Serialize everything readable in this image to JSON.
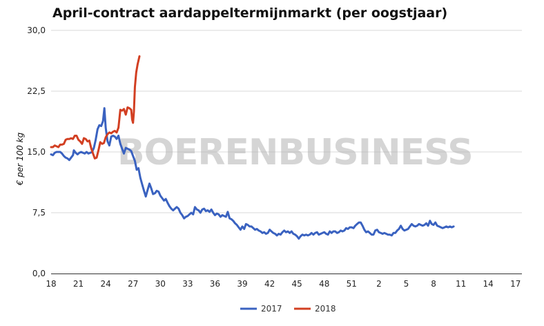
{
  "chart_data": {
    "type": "line",
    "title": "April-contract aardappeltermijnmarkt (per oogstjaar)",
    "ylabel": "€ per 100 kg",
    "xlabel": "",
    "ylim": [
      0,
      30
    ],
    "y_ticks": [
      "0,0",
      "7,5",
      "15,0",
      "22,5",
      "30,0"
    ],
    "x_ticks": [
      "18",
      "21",
      "24",
      "27",
      "30",
      "33",
      "36",
      "39",
      "42",
      "45",
      "48",
      "51",
      "2",
      "5",
      "8",
      "11",
      "14",
      "17"
    ],
    "watermark": "BOERENBUSINESS",
    "grid": "horizontal",
    "legend_position": "bottom",
    "x_unit": "week (18 = week 18, sequential index 0..55 across year boundary)",
    "series": [
      {
        "name": "2017",
        "color": "#3a62c0",
        "points": [
          [
            0,
            14.7
          ],
          [
            0.2,
            14.6
          ],
          [
            0.4,
            14.9
          ],
          [
            0.6,
            15.0
          ],
          [
            0.8,
            15.0
          ],
          [
            1.0,
            15.0
          ],
          [
            1.2,
            14.8
          ],
          [
            1.4,
            14.5
          ],
          [
            1.6,
            14.3
          ],
          [
            1.8,
            14.2
          ],
          [
            2.0,
            14.0
          ],
          [
            2.2,
            14.3
          ],
          [
            2.4,
            14.6
          ],
          [
            2.5,
            15.2
          ],
          [
            2.7,
            14.9
          ],
          [
            2.9,
            14.7
          ],
          [
            3.1,
            14.9
          ],
          [
            3.3,
            15.0
          ],
          [
            3.5,
            14.9
          ],
          [
            3.7,
            14.8
          ],
          [
            3.9,
            15.0
          ],
          [
            4.1,
            14.8
          ],
          [
            4.3,
            14.9
          ],
          [
            4.5,
            15.0
          ],
          [
            4.7,
            15.5
          ],
          [
            4.9,
            16.5
          ],
          [
            5.1,
            17.8
          ],
          [
            5.3,
            18.3
          ],
          [
            5.5,
            18.2
          ],
          [
            5.7,
            18.8
          ],
          [
            5.85,
            20.4
          ],
          [
            6.0,
            18.0
          ],
          [
            6.2,
            16.3
          ],
          [
            6.4,
            15.8
          ],
          [
            6.6,
            16.9
          ],
          [
            6.8,
            17.0
          ],
          [
            7.0,
            16.9
          ],
          [
            7.2,
            16.6
          ],
          [
            7.4,
            17.0
          ],
          [
            7.6,
            16.0
          ],
          [
            7.8,
            15.4
          ],
          [
            8.0,
            14.8
          ],
          [
            8.2,
            15.5
          ],
          [
            8.4,
            15.4
          ],
          [
            8.6,
            15.3
          ],
          [
            8.8,
            15.1
          ],
          [
            9.0,
            14.5
          ],
          [
            9.2,
            13.9
          ],
          [
            9.4,
            12.8
          ],
          [
            9.6,
            13.0
          ],
          [
            9.8,
            11.8
          ],
          [
            10.0,
            11.0
          ],
          [
            10.2,
            10.2
          ],
          [
            10.4,
            9.5
          ],
          [
            10.6,
            10.3
          ],
          [
            10.8,
            11.1
          ],
          [
            11.0,
            10.5
          ],
          [
            11.2,
            9.8
          ],
          [
            11.4,
            9.9
          ],
          [
            11.6,
            10.2
          ],
          [
            11.8,
            10.1
          ],
          [
            12.0,
            9.6
          ],
          [
            12.2,
            9.3
          ],
          [
            12.4,
            9.0
          ],
          [
            12.6,
            9.2
          ],
          [
            12.8,
            8.7
          ],
          [
            13.0,
            8.3
          ],
          [
            13.2,
            8.0
          ],
          [
            13.4,
            7.8
          ],
          [
            13.6,
            8.0
          ],
          [
            13.8,
            8.2
          ],
          [
            14.0,
            8.0
          ],
          [
            14.2,
            7.5
          ],
          [
            14.4,
            7.2
          ],
          [
            14.6,
            6.8
          ],
          [
            14.8,
            7.0
          ],
          [
            15.0,
            7.1
          ],
          [
            15.2,
            7.3
          ],
          [
            15.4,
            7.5
          ],
          [
            15.6,
            7.3
          ],
          [
            15.8,
            8.2
          ],
          [
            16.0,
            7.9
          ],
          [
            16.2,
            7.8
          ],
          [
            16.4,
            7.5
          ],
          [
            16.6,
            7.9
          ],
          [
            16.8,
            8.0
          ],
          [
            17.0,
            7.7
          ],
          [
            17.2,
            7.8
          ],
          [
            17.4,
            7.6
          ],
          [
            17.6,
            7.9
          ],
          [
            17.8,
            7.5
          ],
          [
            18.0,
            7.2
          ],
          [
            18.2,
            7.4
          ],
          [
            18.4,
            7.3
          ],
          [
            18.6,
            7.0
          ],
          [
            18.8,
            7.2
          ],
          [
            19.0,
            7.1
          ],
          [
            19.2,
            7.0
          ],
          [
            19.4,
            7.6
          ],
          [
            19.6,
            6.8
          ],
          [
            19.8,
            6.7
          ],
          [
            20.0,
            6.5
          ],
          [
            20.2,
            6.2
          ],
          [
            20.4,
            6.0
          ],
          [
            20.6,
            5.7
          ],
          [
            20.8,
            5.4
          ],
          [
            21.0,
            5.8
          ],
          [
            21.2,
            5.5
          ],
          [
            21.4,
            6.1
          ],
          [
            21.6,
            6.0
          ],
          [
            21.8,
            5.8
          ],
          [
            22.0,
            5.8
          ],
          [
            22.2,
            5.6
          ],
          [
            22.4,
            5.4
          ],
          [
            22.6,
            5.5
          ],
          [
            22.8,
            5.3
          ],
          [
            23.0,
            5.2
          ],
          [
            23.2,
            5.0
          ],
          [
            23.4,
            5.1
          ],
          [
            23.6,
            4.9
          ],
          [
            23.8,
            5.0
          ],
          [
            24.0,
            5.4
          ],
          [
            24.2,
            5.2
          ],
          [
            24.4,
            5.0
          ],
          [
            24.6,
            4.9
          ],
          [
            24.8,
            4.7
          ],
          [
            25.0,
            4.9
          ],
          [
            25.2,
            4.8
          ],
          [
            25.4,
            5.1
          ],
          [
            25.6,
            5.3
          ],
          [
            25.8,
            5.1
          ],
          [
            26.0,
            5.2
          ],
          [
            26.2,
            5.0
          ],
          [
            26.4,
            5.2
          ],
          [
            26.6,
            4.9
          ],
          [
            26.8,
            4.8
          ],
          [
            27.0,
            4.6
          ],
          [
            27.2,
            4.3
          ],
          [
            27.4,
            4.6
          ],
          [
            27.6,
            4.8
          ],
          [
            27.8,
            4.7
          ],
          [
            28.0,
            4.8
          ],
          [
            28.2,
            4.7
          ],
          [
            28.4,
            4.8
          ],
          [
            28.6,
            5.0
          ],
          [
            28.8,
            4.8
          ],
          [
            29.0,
            5.0
          ],
          [
            29.2,
            5.1
          ],
          [
            29.4,
            4.8
          ],
          [
            29.6,
            4.9
          ],
          [
            29.8,
            5.0
          ],
          [
            30.0,
            5.1
          ],
          [
            30.2,
            4.9
          ],
          [
            30.4,
            4.8
          ],
          [
            30.6,
            5.2
          ],
          [
            30.8,
            5.0
          ],
          [
            31.0,
            5.2
          ],
          [
            31.2,
            5.2
          ],
          [
            31.4,
            5.0
          ],
          [
            31.6,
            5.1
          ],
          [
            31.8,
            5.3
          ],
          [
            32.0,
            5.2
          ],
          [
            32.2,
            5.3
          ],
          [
            32.4,
            5.6
          ],
          [
            32.6,
            5.5
          ],
          [
            32.8,
            5.7
          ],
          [
            33.0,
            5.7
          ],
          [
            33.2,
            5.6
          ],
          [
            33.4,
            5.9
          ],
          [
            33.6,
            6.1
          ],
          [
            33.8,
            6.3
          ],
          [
            34.0,
            6.3
          ],
          [
            34.2,
            5.9
          ],
          [
            34.4,
            5.4
          ],
          [
            34.6,
            5.1
          ],
          [
            34.8,
            5.2
          ],
          [
            35.0,
            5.0
          ],
          [
            35.2,
            4.8
          ],
          [
            35.4,
            4.8
          ],
          [
            35.6,
            5.3
          ],
          [
            35.8,
            5.4
          ],
          [
            36.0,
            5.1
          ],
          [
            36.2,
            5.0
          ],
          [
            36.4,
            4.9
          ],
          [
            36.6,
            5.0
          ],
          [
            36.8,
            4.9
          ],
          [
            37.0,
            4.8
          ],
          [
            37.2,
            4.8
          ],
          [
            37.4,
            4.7
          ],
          [
            37.6,
            5.0
          ],
          [
            37.8,
            5.0
          ],
          [
            38.0,
            5.3
          ],
          [
            38.2,
            5.5
          ],
          [
            38.4,
            5.9
          ],
          [
            38.6,
            5.5
          ],
          [
            38.8,
            5.3
          ],
          [
            39.0,
            5.4
          ],
          [
            39.2,
            5.5
          ],
          [
            39.4,
            5.8
          ],
          [
            39.6,
            6.1
          ],
          [
            39.8,
            5.9
          ],
          [
            40.0,
            5.8
          ],
          [
            40.2,
            5.9
          ],
          [
            40.4,
            6.1
          ],
          [
            40.6,
            6.0
          ],
          [
            40.8,
            5.9
          ],
          [
            41.0,
            6.0
          ],
          [
            41.2,
            6.2
          ],
          [
            41.4,
            5.9
          ],
          [
            41.6,
            6.5
          ],
          [
            41.8,
            6.1
          ],
          [
            42.0,
            6.0
          ],
          [
            42.2,
            6.3
          ],
          [
            42.4,
            5.9
          ],
          [
            42.6,
            5.8
          ],
          [
            42.8,
            5.7
          ],
          [
            43.0,
            5.6
          ],
          [
            43.2,
            5.7
          ],
          [
            43.4,
            5.8
          ],
          [
            43.6,
            5.7
          ],
          [
            43.8,
            5.8
          ],
          [
            44.0,
            5.7
          ],
          [
            44.2,
            5.8
          ]
        ]
      },
      {
        "name": "2018",
        "color": "#d23f22",
        "points": [
          [
            0,
            15.6
          ],
          [
            0.2,
            15.6
          ],
          [
            0.4,
            15.8
          ],
          [
            0.6,
            15.7
          ],
          [
            0.8,
            15.6
          ],
          [
            1.0,
            15.9
          ],
          [
            1.2,
            15.9
          ],
          [
            1.4,
            16.0
          ],
          [
            1.6,
            16.5
          ],
          [
            1.8,
            16.6
          ],
          [
            2.0,
            16.6
          ],
          [
            2.2,
            16.7
          ],
          [
            2.4,
            16.6
          ],
          [
            2.6,
            17.0
          ],
          [
            2.8,
            17.0
          ],
          [
            3.0,
            16.5
          ],
          [
            3.2,
            16.3
          ],
          [
            3.4,
            16.0
          ],
          [
            3.6,
            16.7
          ],
          [
            3.8,
            16.6
          ],
          [
            4.0,
            16.3
          ],
          [
            4.2,
            16.4
          ],
          [
            4.4,
            15.5
          ],
          [
            4.6,
            14.8
          ],
          [
            4.8,
            14.2
          ],
          [
            5.0,
            14.3
          ],
          [
            5.2,
            15.2
          ],
          [
            5.4,
            16.2
          ],
          [
            5.6,
            16.0
          ],
          [
            5.8,
            16.1
          ],
          [
            6.0,
            16.8
          ],
          [
            6.2,
            17.2
          ],
          [
            6.4,
            17.4
          ],
          [
            6.6,
            17.3
          ],
          [
            6.8,
            17.5
          ],
          [
            7.0,
            17.6
          ],
          [
            7.2,
            17.4
          ],
          [
            7.4,
            18.0
          ],
          [
            7.6,
            20.2
          ],
          [
            7.8,
            20.1
          ],
          [
            8.0,
            20.3
          ],
          [
            8.2,
            19.6
          ],
          [
            8.4,
            20.5
          ],
          [
            8.6,
            20.4
          ],
          [
            8.8,
            20.2
          ],
          [
            8.9,
            19.0
          ],
          [
            9.0,
            18.6
          ],
          [
            9.1,
            20.0
          ],
          [
            9.2,
            23.0
          ],
          [
            9.35,
            24.8
          ],
          [
            9.5,
            25.8
          ],
          [
            9.7,
            26.8
          ]
        ]
      }
    ]
  }
}
